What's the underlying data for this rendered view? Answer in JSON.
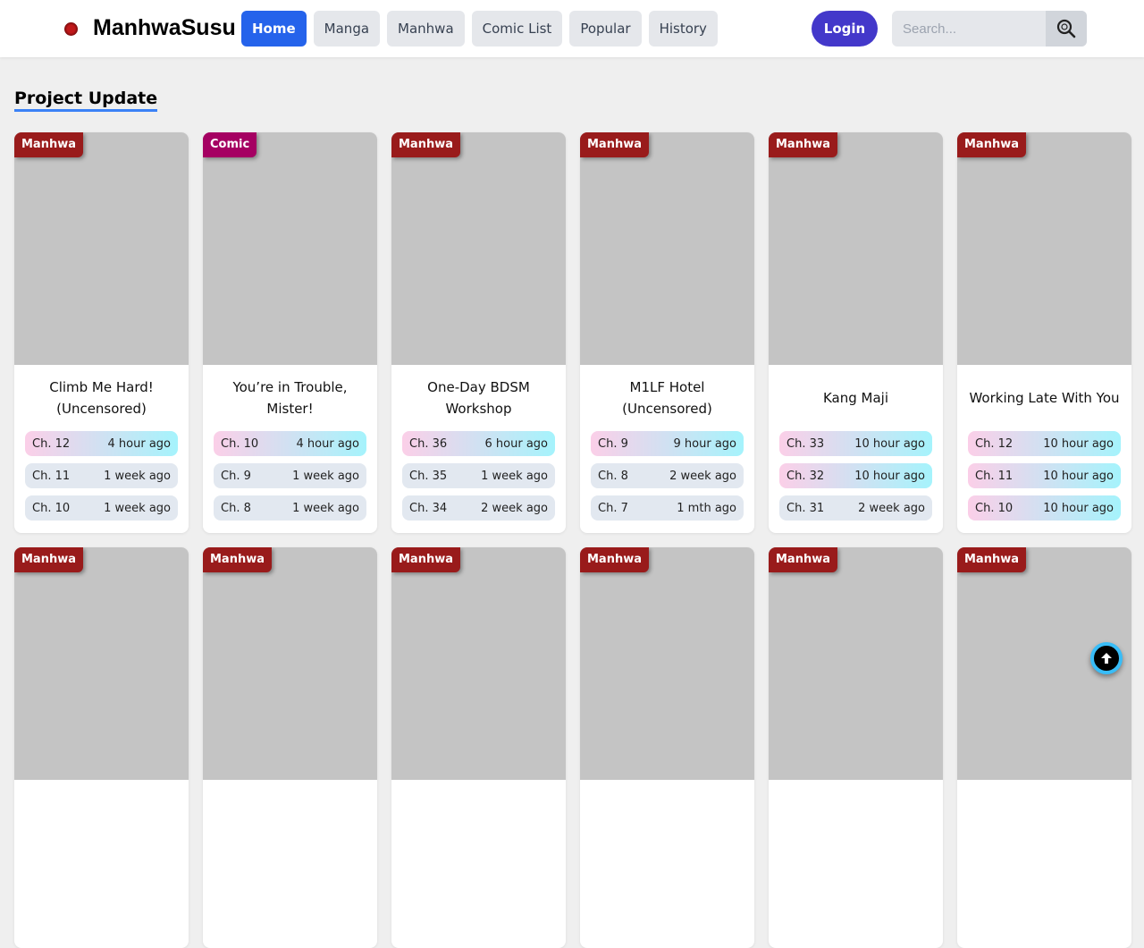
{
  "header": {
    "brand": "ManhwaSusu",
    "nav": [
      "Home",
      "Manga",
      "Manhwa",
      "Comic List",
      "Popular",
      "History"
    ],
    "active": "Home",
    "login": "Login",
    "search_placeholder": "Search..."
  },
  "section_title": "Project Update",
  "colors": {
    "manhwa": "#991b1b",
    "comic": "#a50062",
    "accent": "#2563eb"
  },
  "cards": [
    {
      "type": "Manhwa",
      "title": "Climb Me Hard! (Uncensored)",
      "chapters": [
        {
          "ch": "Ch. 12",
          "time": "4 hour ago",
          "new": true
        },
        {
          "ch": "Ch. 11",
          "time": "1 week ago",
          "new": false
        },
        {
          "ch": "Ch. 10",
          "time": "1 week ago",
          "new": false
        }
      ]
    },
    {
      "type": "Comic",
      "title": "You’re in Trouble, Mister!",
      "chapters": [
        {
          "ch": "Ch. 10",
          "time": "4 hour ago",
          "new": true
        },
        {
          "ch": "Ch. 9",
          "time": "1 week ago",
          "new": false
        },
        {
          "ch": "Ch. 8",
          "time": "1 week ago",
          "new": false
        }
      ]
    },
    {
      "type": "Manhwa",
      "title": "One-Day BDSM Workshop",
      "chapters": [
        {
          "ch": "Ch. 36",
          "time": "6 hour ago",
          "new": true
        },
        {
          "ch": "Ch. 35",
          "time": "1 week ago",
          "new": false
        },
        {
          "ch": "Ch. 34",
          "time": "2 week ago",
          "new": false
        }
      ]
    },
    {
      "type": "Manhwa",
      "title": "M1LF Hotel (Uncensored)",
      "chapters": [
        {
          "ch": "Ch. 9",
          "time": "9 hour ago",
          "new": true
        },
        {
          "ch": "Ch. 8",
          "time": "2 week ago",
          "new": false
        },
        {
          "ch": "Ch. 7",
          "time": "1 mth ago",
          "new": false
        }
      ]
    },
    {
      "type": "Manhwa",
      "title": "Kang Maji",
      "chapters": [
        {
          "ch": "Ch. 33",
          "time": "10 hour ago",
          "new": true
        },
        {
          "ch": "Ch. 32",
          "time": "10 hour ago",
          "new": true
        },
        {
          "ch": "Ch. 31",
          "time": "2 week ago",
          "new": false
        }
      ]
    },
    {
      "type": "Manhwa",
      "title": "Working Late With You",
      "chapters": [
        {
          "ch": "Ch. 12",
          "time": "10 hour ago",
          "new": true
        },
        {
          "ch": "Ch. 11",
          "time": "10 hour ago",
          "new": true
        },
        {
          "ch": "Ch. 10",
          "time": "10 hour ago",
          "new": true
        }
      ]
    },
    {
      "type": "Manhwa"
    },
    {
      "type": "Manhwa"
    },
    {
      "type": "Manhwa"
    },
    {
      "type": "Manhwa"
    },
    {
      "type": "Manhwa"
    },
    {
      "type": "Manhwa"
    }
  ]
}
